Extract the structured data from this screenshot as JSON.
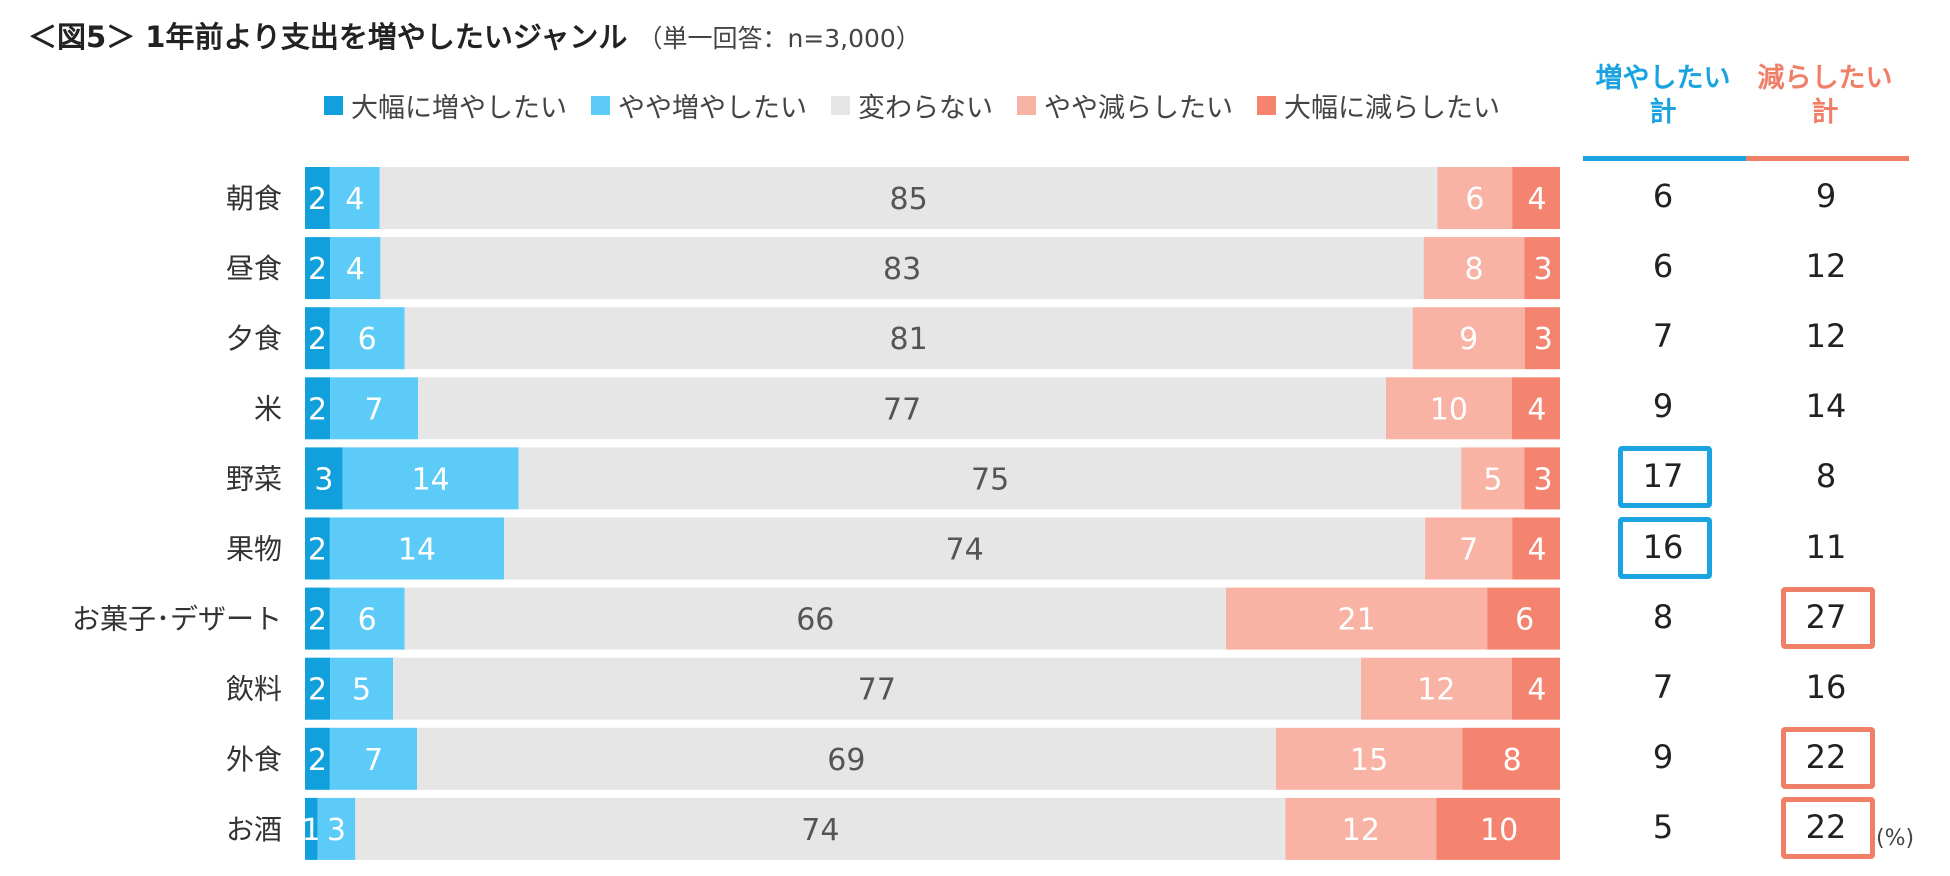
{
  "title": "＜図5＞ 1年前より支出を増やしたいジャンル",
  "subtitle": "（単一回答：n=3,000）",
  "unit_label": "(%)",
  "colors": {
    "inc_large": "#12a0dc",
    "inc_some": "#5ccbf7",
    "unchanged": "#e6e6e6",
    "dec_some": "#f8b3a5",
    "dec_large": "#f4846f",
    "inc_accent": "#1aa3e0",
    "dec_accent": "#f07f68"
  },
  "totals_headers": {
    "increase": "増やしたい計",
    "decrease": "減らしたい計"
  },
  "chart_data": {
    "type": "bar",
    "orientation": "horizontal",
    "stacked": true,
    "normalized": true,
    "categories": [
      "朝食",
      "昼食",
      "夕食",
      "米",
      "野菜",
      "果物",
      "お菓子･デザート",
      "飲料",
      "外食",
      "お酒"
    ],
    "series": [
      {
        "name": "大幅に増やしたい",
        "color": "#12a0dc",
        "values": [
          2,
          2,
          2,
          2,
          3,
          2,
          2,
          2,
          2,
          1
        ]
      },
      {
        "name": "やや増やしたい",
        "color": "#5ccbf7",
        "values": [
          4,
          4,
          6,
          7,
          14,
          14,
          6,
          5,
          7,
          3
        ]
      },
      {
        "name": "変わらない",
        "color": "#e6e6e6",
        "values": [
          85,
          83,
          81,
          77,
          75,
          74,
          66,
          77,
          69,
          74
        ]
      },
      {
        "name": "やや減らしたい",
        "color": "#f8b3a5",
        "values": [
          6,
          8,
          9,
          10,
          5,
          7,
          21,
          12,
          15,
          12
        ]
      },
      {
        "name": "大幅に減らしたい",
        "color": "#f4846f",
        "values": [
          4,
          3,
          3,
          4,
          3,
          4,
          6,
          4,
          8,
          10
        ]
      }
    ],
    "increase_totals": [
      6,
      6,
      7,
      9,
      17,
      16,
      8,
      7,
      9,
      5
    ],
    "decrease_totals": [
      9,
      12,
      12,
      14,
      8,
      11,
      27,
      16,
      22,
      22
    ],
    "highlighted_increase": [
      false,
      false,
      false,
      false,
      true,
      true,
      false,
      false,
      false,
      false
    ],
    "highlighted_decrease": [
      false,
      false,
      false,
      false,
      false,
      false,
      true,
      false,
      true,
      true
    ],
    "legend_position": "top",
    "grid": false
  }
}
